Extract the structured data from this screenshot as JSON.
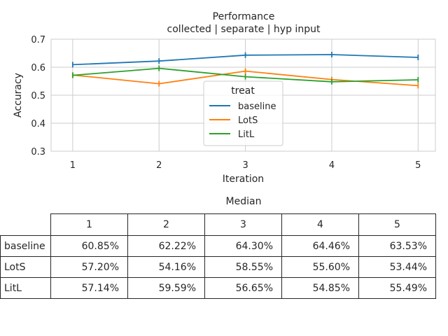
{
  "chart_data": {
    "type": "line",
    "title": "Performance",
    "subtitle": "collected | separate | hyp input",
    "xlabel": "Iteration",
    "ylabel": "Accuracy",
    "x": [
      1,
      2,
      3,
      4,
      5
    ],
    "xticks": [
      "1",
      "2",
      "3",
      "4",
      "5"
    ],
    "xlim": [
      0.75,
      5.2
    ],
    "ylim": [
      0.3,
      0.7
    ],
    "yticks": [
      "0.3",
      "0.4",
      "0.5",
      "0.6",
      "0.7"
    ],
    "grid": true,
    "legend": {
      "title": "treat",
      "placement": "center"
    },
    "series": [
      {
        "name": "baseline",
        "color": "#1f77b4",
        "values": [
          0.609,
          0.622,
          0.643,
          0.645,
          0.635
        ]
      },
      {
        "name": "LotS",
        "color": "#ff7f0e",
        "values": [
          0.572,
          0.541,
          0.586,
          0.556,
          0.534
        ]
      },
      {
        "name": "LitL",
        "color": "#2ca02c",
        "values": [
          0.571,
          0.596,
          0.566,
          0.548,
          0.555
        ]
      }
    ]
  },
  "table": {
    "caption": "Median",
    "columns": [
      "1",
      "2",
      "3",
      "4",
      "5"
    ],
    "rows": [
      {
        "label": "baseline",
        "cells": [
          "60.85%",
          "62.22%",
          "64.30%",
          "64.46%",
          "63.53%"
        ]
      },
      {
        "label": "LotS",
        "cells": [
          "57.20%",
          "54.16%",
          "58.55%",
          "55.60%",
          "53.44%"
        ]
      },
      {
        "label": "LitL",
        "cells": [
          "57.14%",
          "59.59%",
          "56.65%",
          "54.85%",
          "55.49%"
        ]
      }
    ]
  }
}
